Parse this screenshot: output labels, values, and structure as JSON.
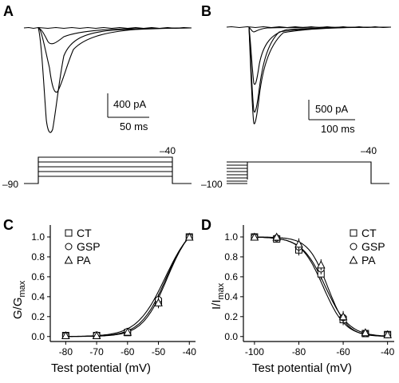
{
  "panels": {
    "A": "A",
    "B": "B",
    "C": "C",
    "D": "D"
  },
  "scalebars": {
    "A_current": "400 pA",
    "A_time": "50 ms",
    "B_current": "500 pA",
    "B_time": "100 ms"
  },
  "protocols": {
    "A_hold": "–90",
    "A_step": "–40",
    "B_hold": "–100",
    "B_step": "–40"
  },
  "chart_data": [
    {
      "panel": "C",
      "type": "scatter",
      "title": "",
      "xlabel": "Test potential (mV)",
      "ylabel_main": "G/G",
      "ylabel_sub": "max",
      "xlim": [
        -85,
        -38
      ],
      "ylim": [
        -0.05,
        1.12
      ],
      "xticks": [
        -80,
        -70,
        -60,
        -50,
        -40
      ],
      "yticks": [
        "0.0",
        "0.2",
        "0.4",
        "0.6",
        "0.8",
        "1.0"
      ],
      "legend_position": "top-left",
      "x": [
        -80,
        -70,
        -60,
        -50,
        -40
      ],
      "series": [
        {
          "name": "CT",
          "marker": "square",
          "values": [
            0.01,
            0.01,
            0.04,
            0.35,
            1.0
          ],
          "fit": {
            "v_half": -47.5,
            "k": 4.2
          }
        },
        {
          "name": "GSP",
          "marker": "circle",
          "values": [
            0.01,
            0.015,
            0.05,
            0.37,
            1.0
          ],
          "fit": {
            "v_half": -47.8,
            "k": 4.6
          }
        },
        {
          "name": "PA",
          "marker": "triangle",
          "values": [
            0.01,
            0.01,
            0.045,
            0.34,
            1.0
          ],
          "fit": {
            "v_half": -47.2,
            "k": 4.0
          }
        }
      ]
    },
    {
      "panel": "D",
      "type": "scatter",
      "title": "",
      "xlabel": "Test potential (mV)",
      "ylabel_main": "I/I",
      "ylabel_sub": "max",
      "xlim": [
        -105,
        -37
      ],
      "ylim": [
        -0.05,
        1.12
      ],
      "xticks": [
        -100,
        -80,
        -60,
        -40
      ],
      "yticks": [
        "0.0",
        "0.2",
        "0.4",
        "0.6",
        "0.8",
        "1.0"
      ],
      "legend_position": "top-right",
      "x": [
        -100,
        -90,
        -80,
        -70,
        -60,
        -50,
        -40
      ],
      "series": [
        {
          "name": "CT",
          "marker": "square",
          "values": [
            1.0,
            0.98,
            0.87,
            0.63,
            0.17,
            0.03,
            0.02
          ],
          "fit": {
            "v_half": -69.0,
            "k": 5.0
          }
        },
        {
          "name": "GSP",
          "marker": "circle",
          "values": [
            1.0,
            0.99,
            0.9,
            0.68,
            0.19,
            0.03,
            0.02
          ],
          "fit": {
            "v_half": -68.0,
            "k": 5.3
          }
        },
        {
          "name": "PA",
          "marker": "triangle",
          "values": [
            1.0,
            1.0,
            0.93,
            0.72,
            0.2,
            0.04,
            0.02
          ],
          "fit": {
            "v_half": -67.0,
            "k": 4.4
          }
        }
      ]
    }
  ]
}
